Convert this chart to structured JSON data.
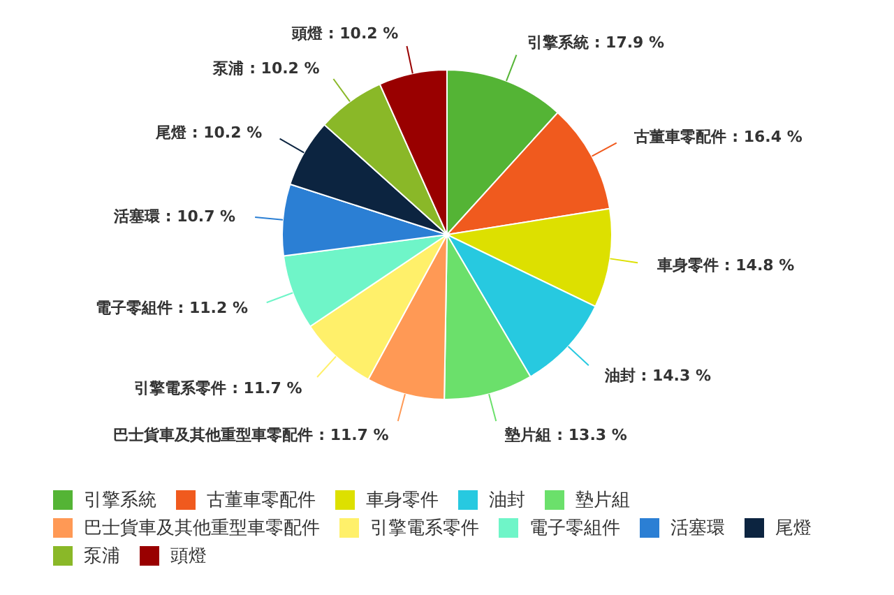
{
  "chart_data": {
    "type": "pie",
    "categories": [
      "引擎系統",
      "古董車零配件",
      "車身零件",
      "油封",
      "墊片組",
      "巴士貨車及其他重型車零配件",
      "引擎電系零件",
      "電子零組件",
      "活塞環",
      "尾燈",
      "泵浦",
      "頭燈"
    ],
    "values": [
      17.9,
      16.4,
      14.8,
      14.3,
      13.3,
      11.7,
      11.7,
      11.2,
      10.7,
      10.2,
      10.2,
      10.2
    ],
    "colors": [
      "#54b435",
      "#f05a1e",
      "#dde000",
      "#27c9e0",
      "#6be06b",
      "#ff9955",
      "#fff06a",
      "#6ff5c8",
      "#2b7fd4",
      "#0c2440",
      "#8ab828",
      "#990000"
    ],
    "value_labels": [
      ": 17.9 %",
      ": 16.4 %",
      ": 14.8 %",
      ": 14.3 %",
      ": 13.3 %",
      ": 11.7 %",
      ": 11.7 %",
      ": 11.2 %",
      ": 10.7 %",
      ": 10.2 %",
      ": 10.2 %",
      ": 10.2 %"
    ],
    "legend": "bottom"
  }
}
